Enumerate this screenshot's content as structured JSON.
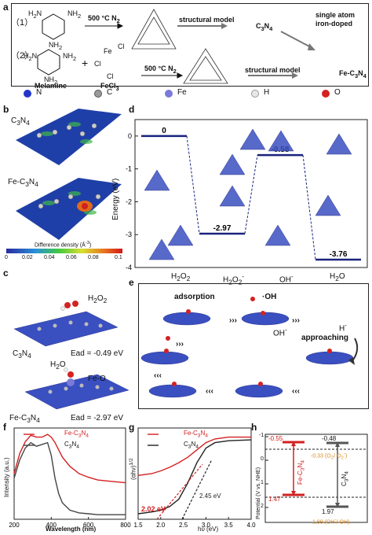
{
  "figure": {
    "panels": {
      "a": "a",
      "b": "b",
      "c": "c",
      "d": "d",
      "e": "e",
      "f": "f",
      "g": "g",
      "h": "h"
    }
  },
  "panel_a": {
    "row1_index": "（1）",
    "row2_index": "（2）",
    "temp1": "500 °C  N",
    "temp2": "500 °C  N",
    "sub2": "2",
    "structural_model": "structural model",
    "c3n4": "C",
    "c3n4_sub3": "3",
    "c3n4_n": "N",
    "c3n4_sub4": "4",
    "single_atom_l1": "single atom",
    "single_atom_l2": "iron-doped",
    "melamine": "Melamine",
    "fecl3": "FeCl",
    "fecl3_sub": "3",
    "fe_c3n4": "Fe-C",
    "plus": "+",
    "nh2": "NH",
    "h2n": "H",
    "atoms": {
      "cl": "Cl",
      "fe": "Fe"
    }
  },
  "legend": {
    "items": [
      {
        "label": "N",
        "color": "#2436c8"
      },
      {
        "label": "C",
        "color": "#9a9a9a"
      },
      {
        "label": "Fe",
        "color": "#7a7ad8"
      },
      {
        "label": "H",
        "color": "#e8e8e8"
      },
      {
        "label": "O",
        "color": "#d42222"
      }
    ]
  },
  "panel_b": {
    "label1": "C",
    "label2": "Fe-C",
    "scale_title": "Difference density (Å",
    "scale_title_end": ")",
    "ticks": [
      "0",
      "0.02",
      "0.04",
      "0.06",
      "0.08",
      "0.1"
    ]
  },
  "panel_c": {
    "h2o2": "H",
    "c3n4": "C",
    "ead1": "Ead = -0.49 eV",
    "h2o": "H",
    "feo": "Fe-O",
    "fe_c3n4": "Fe-C",
    "ead2": "Ead = -2.97 eV"
  },
  "chart_data": [
    {
      "type": "line",
      "title": "",
      "ylabel": "Energy (eV)",
      "ylim": [
        -4,
        0.5
      ],
      "yticks": [
        "0",
        "-1",
        "-2",
        "-3",
        "-4"
      ],
      "categories": [
        "H2O2",
        "H2O2-",
        "OH-",
        "H2O"
      ],
      "values": [
        0,
        -2.97,
        -0.58,
        -3.76
      ],
      "value_labels": [
        "0",
        "-2.97",
        "-0.58",
        "-3.76"
      ]
    },
    {
      "type": "line",
      "xlabel": "Wavelength (nm)",
      "ylabel": "Intensity (a.u.)",
      "xlim": [
        200,
        800
      ],
      "xticks": [
        "200",
        "400",
        "600",
        "800"
      ],
      "series": [
        {
          "name": "Fe-C3N4",
          "color": "#d42020",
          "x": [
            200,
            230,
            260,
            290,
            320,
            350,
            380,
            400,
            420,
            440,
            460,
            500,
            550,
            600,
            650,
            700,
            750,
            800
          ],
          "y": [
            0.5,
            0.72,
            0.85,
            0.92,
            0.9,
            0.9,
            0.93,
            0.9,
            0.84,
            0.76,
            0.68,
            0.58,
            0.5,
            0.46,
            0.43,
            0.42,
            0.41,
            0.4
          ]
        },
        {
          "name": "C3N4",
          "color": "#444444",
          "x": [
            200,
            230,
            260,
            290,
            320,
            350,
            380,
            400,
            420,
            440,
            460,
            500,
            550,
            600,
            650,
            700,
            750,
            800
          ],
          "y": [
            0.45,
            0.65,
            0.78,
            0.84,
            0.8,
            0.82,
            0.84,
            0.7,
            0.45,
            0.28,
            0.18,
            0.1,
            0.07,
            0.06,
            0.05,
            0.05,
            0.05,
            0.05
          ]
        }
      ]
    },
    {
      "type": "line",
      "xlabel": "hυ (eV)",
      "ylabel": "(αhν)",
      "xlim": [
        1.5,
        4.0
      ],
      "xticks": [
        "1.5",
        "2.0",
        "2.5",
        "3.0",
        "3.5",
        "4.0"
      ],
      "annotations": [
        "2.02 eV",
        "2.45 eV"
      ],
      "series": [
        {
          "name": "Fe-C3N4",
          "color": "#d42020",
          "x": [
            1.5,
            1.8,
            2.0,
            2.2,
            2.4,
            2.6,
            2.8,
            3.0,
            3.2,
            3.5,
            4.0
          ],
          "y": [
            0.48,
            0.5,
            0.53,
            0.57,
            0.62,
            0.68,
            0.76,
            0.84,
            0.88,
            0.9,
            0.9
          ]
        },
        {
          "name": "C3N4",
          "color": "#222222",
          "x": [
            1.5,
            1.8,
            2.0,
            2.2,
            2.4,
            2.6,
            2.8,
            3.0,
            3.2,
            3.5,
            4.0
          ],
          "y": [
            0.06,
            0.08,
            0.1,
            0.14,
            0.22,
            0.4,
            0.62,
            0.78,
            0.84,
            0.86,
            0.87
          ]
        }
      ]
    }
  ],
  "panel_h": {
    "ylabel": "Potential (V vs. NHE)",
    "yticks": [
      "-1",
      "0",
      "1",
      "2"
    ],
    "fe_top": "-0.55",
    "fe_bottom": "1.47",
    "fe_label": "Fe-C",
    "c_top": "-0.48",
    "c_bottom": "1.97",
    "c_label": "C",
    "o2_label": "-0.33 (O",
    "oh_label": "1.99 (OH",
    "oh_end": "/·OH)"
  },
  "panel_e": {
    "adsorption": "adsorption",
    "oh_radical": "·OH",
    "oh_minus": "OH",
    "h_minus": "H",
    "approaching": "approaching"
  },
  "panel_d": {
    "x_labels": [
      "H",
      "H",
      "OH",
      "H"
    ]
  }
}
